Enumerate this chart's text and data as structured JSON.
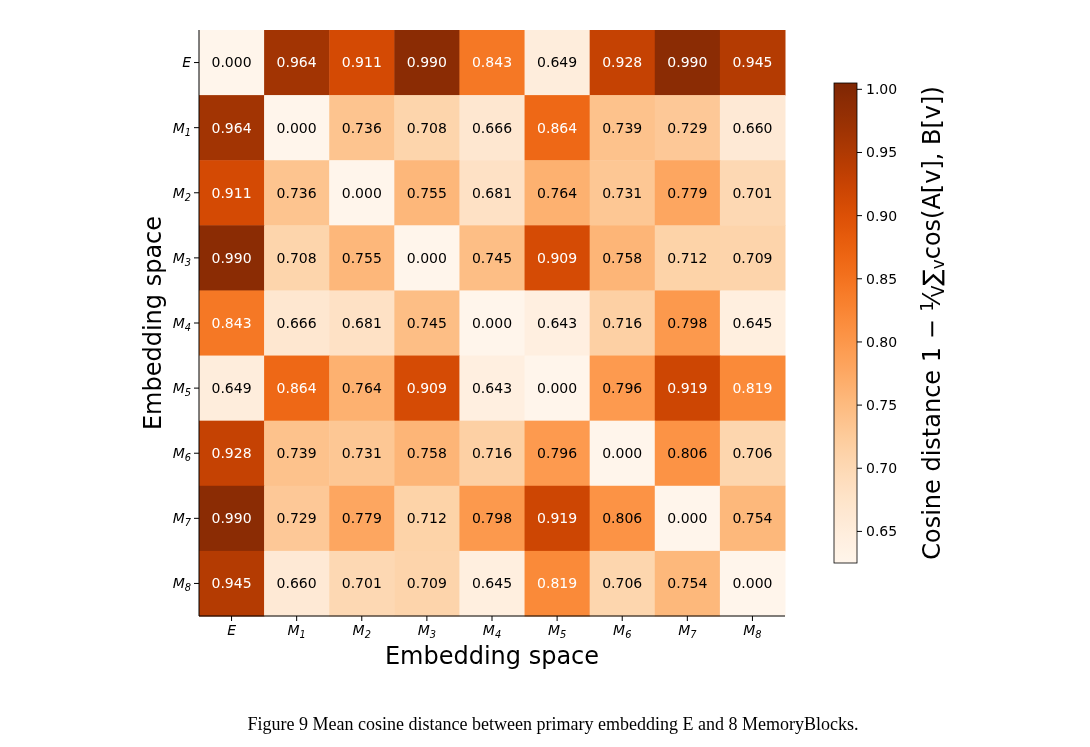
{
  "chart_data": {
    "type": "heatmap",
    "xlabel": "Embedding space",
    "ylabel": "Embedding space",
    "clabel": "Cosine distance  1 − $^{1}$⁄$_{V}$∑$_{v}$cos(A[v], B[v])",
    "categories": [
      "E",
      "M$_{1}$",
      "M$_{2}$",
      "M$_{3}$",
      "M$_{4}$",
      "M$_{5}$",
      "M$_{6}$",
      "M$_{7}$",
      "M$_{8}$"
    ],
    "y_categories": [
      "E",
      "M$_{1}$",
      "M$_{2}$",
      "M$_{3}$",
      "M$_{4}$",
      "M$_{5}$",
      "M$_{6}$",
      "M$_{7}$",
      "M$_{8}$"
    ],
    "cells": [
      [
        0.0,
        0.964,
        0.911,
        0.99,
        0.843,
        0.649,
        0.928,
        0.99,
        0.945
      ],
      [
        0.964,
        0.0,
        0.736,
        0.708,
        0.666,
        0.864,
        0.739,
        0.729,
        0.66
      ],
      [
        0.911,
        0.736,
        0.0,
        0.755,
        0.681,
        0.764,
        0.731,
        0.779,
        0.701
      ],
      [
        0.99,
        0.708,
        0.755,
        0.0,
        0.745,
        0.909,
        0.758,
        0.712,
        0.709
      ],
      [
        0.843,
        0.666,
        0.681,
        0.745,
        0.0,
        0.643,
        0.716,
        0.798,
        0.645
      ],
      [
        0.649,
        0.864,
        0.764,
        0.909,
        0.643,
        0.0,
        0.796,
        0.919,
        0.819
      ],
      [
        0.928,
        0.739,
        0.731,
        0.758,
        0.716,
        0.796,
        0.0,
        0.806,
        0.706
      ],
      [
        0.99,
        0.729,
        0.779,
        0.712,
        0.798,
        0.919,
        0.806,
        0.0,
        0.754
      ],
      [
        0.945,
        0.66,
        0.701,
        0.709,
        0.645,
        0.819,
        0.706,
        0.754,
        0.0
      ]
    ],
    "clim": [
      0.625,
      1.005
    ],
    "cticks": [
      {
        "value": 0.65,
        "label": "0.65"
      },
      {
        "value": 0.7,
        "label": "0.70"
      },
      {
        "value": 0.75,
        "label": "0.75"
      },
      {
        "value": 0.8,
        "label": "0.80"
      },
      {
        "value": 0.85,
        "label": "0.85"
      },
      {
        "value": 0.9,
        "label": "0.90"
      },
      {
        "value": 0.95,
        "label": "0.95"
      },
      {
        "value": 1.0,
        "label": "1.00"
      }
    ],
    "cell_labels": [
      [
        "0.000",
        "0.964",
        "0.911",
        "0.990",
        "0.843",
        "0.649",
        "0.928",
        "0.990",
        "0.945"
      ],
      [
        "0.964",
        "0.000",
        "0.736",
        "0.708",
        "0.666",
        "0.864",
        "0.739",
        "0.729",
        "0.660"
      ],
      [
        "0.911",
        "0.736",
        "0.000",
        "0.755",
        "0.681",
        "0.764",
        "0.731",
        "0.779",
        "0.701"
      ],
      [
        "0.990",
        "0.708",
        "0.755",
        "0.000",
        "0.745",
        "0.909",
        "0.758",
        "0.712",
        "0.709"
      ],
      [
        "0.843",
        "0.666",
        "0.681",
        "0.745",
        "0.000",
        "0.643",
        "0.716",
        "0.798",
        "0.645"
      ],
      [
        "0.649",
        "0.864",
        "0.764",
        "0.909",
        "0.643",
        "0.000",
        "0.796",
        "0.919",
        "0.819"
      ],
      [
        "0.928",
        "0.739",
        "0.731",
        "0.758",
        "0.716",
        "0.796",
        "0.000",
        "0.806",
        "0.706"
      ],
      [
        "0.990",
        "0.729",
        "0.779",
        "0.712",
        "0.798",
        "0.919",
        "0.806",
        "0.000",
        "0.754"
      ],
      [
        "0.945",
        "0.660",
        "0.701",
        "0.709",
        "0.645",
        "0.819",
        "0.706",
        "0.754",
        "0.000"
      ]
    ],
    "annotations": [
      "Figure 9  Mean cosine distance between primary embedding E and 8 MemoryBlocks."
    ]
  }
}
